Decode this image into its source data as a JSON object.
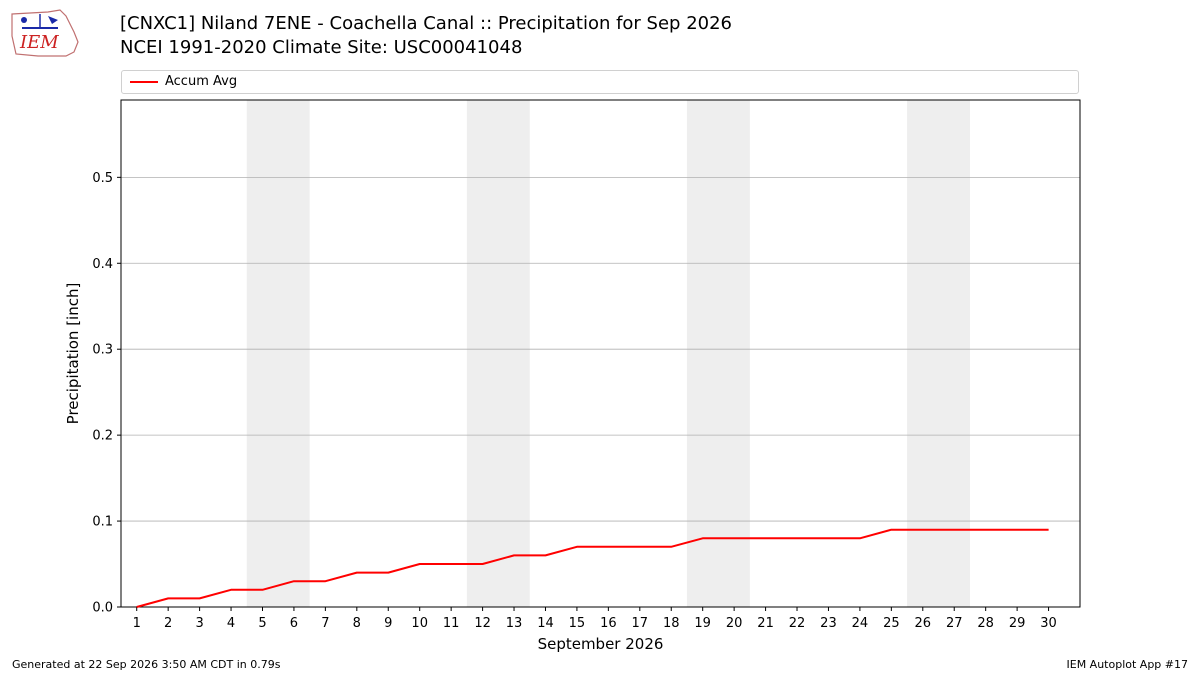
{
  "header": {
    "logo_text": "IEM",
    "title": "[CNXC1] Niland 7ENE - Coachella Canal :: Precipitation for Sep 2026",
    "subtitle": "NCEI 1991-2020 Climate Site: USC00041048"
  },
  "footer": {
    "generated": "Generated at 22 Sep 2026 3:50 AM CDT in 0.79s",
    "app": "IEM Autoplot App #17"
  },
  "colors": {
    "line": "#ff0000",
    "weekend_band": "#eeeeee",
    "grid": "#b0b0b0"
  },
  "chart_data": {
    "type": "line",
    "xlabel": "September 2026",
    "ylabel": "Precipitation [inch]",
    "xlim": [
      0.5,
      31.0
    ],
    "ylim": [
      0.0,
      0.59
    ],
    "yticks": [
      0.0,
      0.1,
      0.2,
      0.3,
      0.4,
      0.5
    ],
    "ytick_labels": [
      "0.0",
      "0.1",
      "0.2",
      "0.3",
      "0.4",
      "0.5"
    ],
    "xticks": [
      1,
      2,
      3,
      4,
      5,
      6,
      7,
      8,
      9,
      10,
      11,
      12,
      13,
      14,
      15,
      16,
      17,
      18,
      19,
      20,
      21,
      22,
      23,
      24,
      25,
      26,
      27,
      28,
      29,
      30
    ],
    "grid": "horizontal",
    "legend": "top",
    "weekend_bands": [
      [
        5,
        6
      ],
      [
        12,
        13
      ],
      [
        19,
        20
      ],
      [
        26,
        27
      ]
    ],
    "series": [
      {
        "name": "Accum Avg",
        "x": [
          1,
          2,
          3,
          4,
          5,
          6,
          7,
          8,
          9,
          10,
          11,
          12,
          13,
          14,
          15,
          16,
          17,
          18,
          19,
          20,
          21,
          22,
          23,
          24,
          25,
          26,
          27,
          28,
          29,
          30
        ],
        "values": [
          0.0,
          0.01,
          0.01,
          0.02,
          0.02,
          0.03,
          0.03,
          0.04,
          0.04,
          0.05,
          0.05,
          0.05,
          0.06,
          0.06,
          0.07,
          0.07,
          0.07,
          0.07,
          0.08,
          0.08,
          0.08,
          0.08,
          0.08,
          0.08,
          0.09,
          0.09,
          0.09,
          0.09,
          0.09,
          0.09
        ]
      }
    ]
  }
}
